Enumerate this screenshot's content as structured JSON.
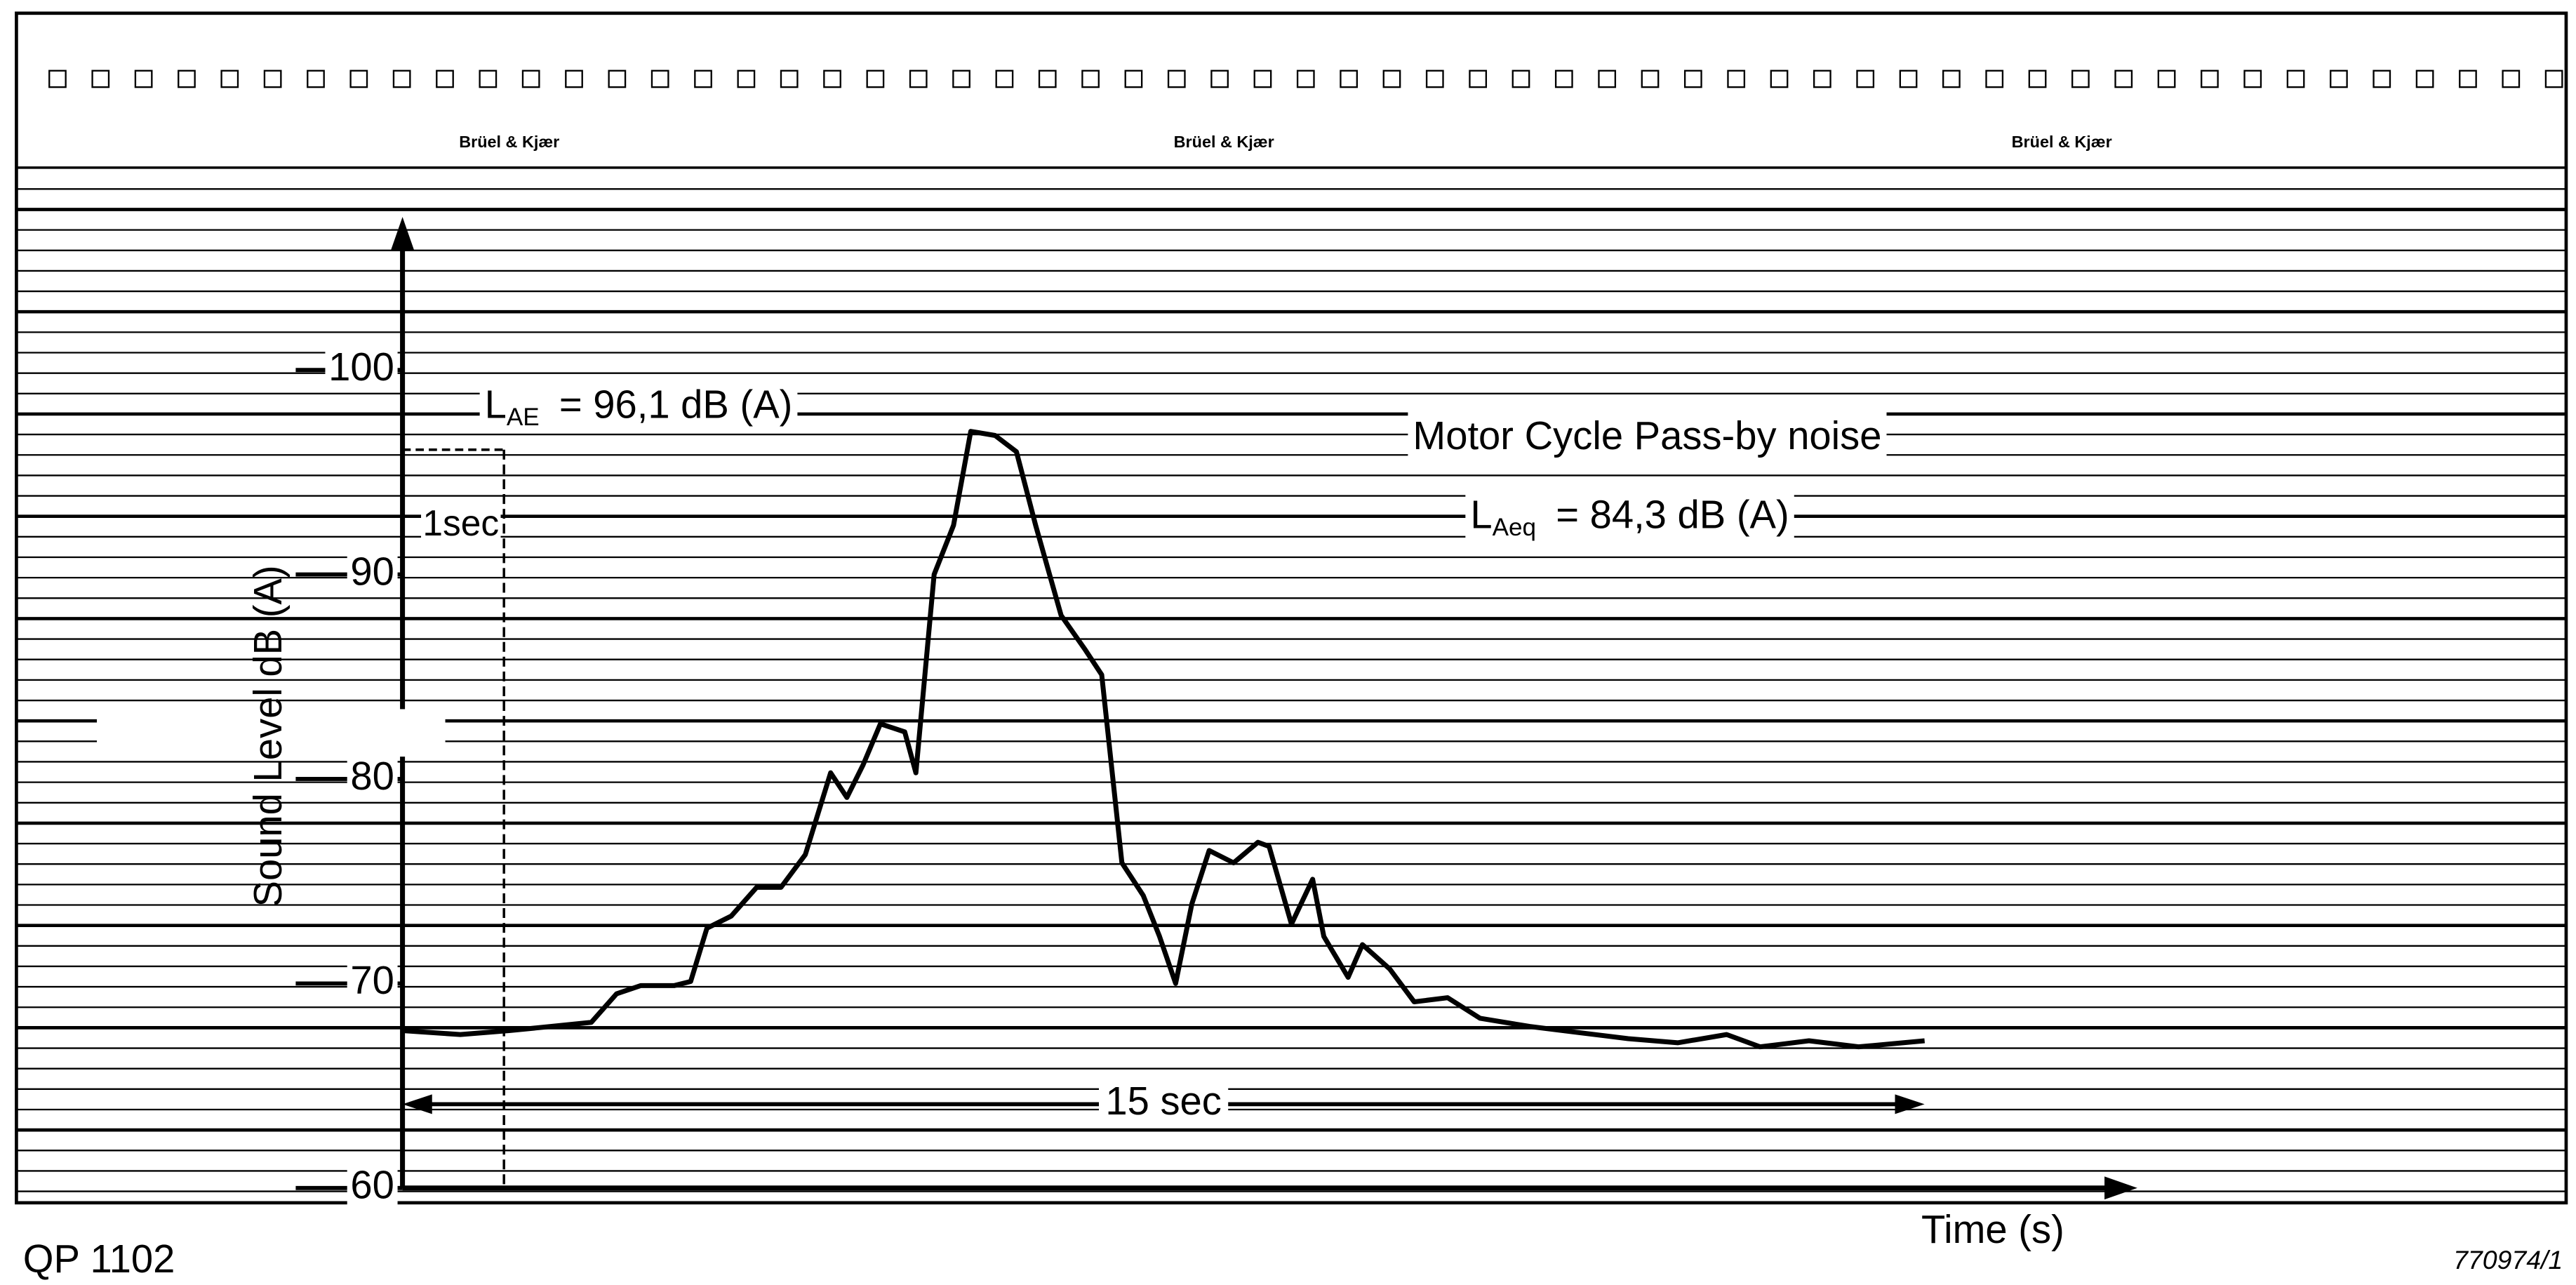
{
  "header": {
    "brands": [
      "Brüel & Kjær",
      "Brüel & Kjær",
      "Brüel & Kjær"
    ]
  },
  "footer": {
    "left": "QP 1102",
    "right": "770974/1"
  },
  "chart_data": {
    "type": "line",
    "title": "Motor Cycle Pass-by noise",
    "ylabel": "Sound Level dB (A)",
    "xlabel": "Time (s)",
    "x": [
      0,
      0.57,
      1.05,
      1.46,
      1.86,
      2.11,
      2.35,
      2.68,
      2.84,
      3.0,
      3.24,
      3.49,
      3.73,
      3.97,
      4.22,
      4.38,
      4.54,
      4.71,
      4.95,
      5.06,
      5.24,
      5.43,
      5.6,
      5.84,
      6.05,
      6.24,
      6.49,
      6.73,
      6.89,
      7.09,
      7.3,
      7.46,
      7.62,
      7.78,
      7.95,
      8.19,
      8.43,
      8.54,
      8.76,
      8.97,
      9.08,
      9.32,
      9.46,
      9.73,
      9.97,
      10.3,
      10.62,
      11.11,
      11.59,
      12.08,
      12.57,
      13.05,
      13.38,
      13.86,
      14.35,
      15.0
    ],
    "values": [
      67.7,
      67.5,
      67.7,
      67.9,
      68.1,
      69.5,
      69.9,
      69.9,
      70.1,
      72.7,
      73.3,
      74.7,
      74.7,
      76.3,
      80.3,
      79.1,
      80.7,
      82.7,
      82.3,
      80.3,
      90.0,
      92.4,
      97.0,
      96.8,
      96.0,
      92.4,
      88.0,
      86.3,
      85.1,
      75.9,
      74.3,
      72.3,
      70.0,
      73.9,
      76.5,
      75.9,
      76.9,
      76.7,
      72.9,
      75.1,
      72.3,
      70.3,
      71.9,
      70.7,
      69.1,
      69.3,
      68.3,
      67.9,
      67.6,
      67.3,
      67.1,
      67.5,
      66.9,
      67.2,
      66.9,
      67.2
    ],
    "color": "#000000",
    "xlim": [
      0,
      17
    ],
    "ylim": [
      60,
      107
    ],
    "yticks": [
      60,
      70,
      80,
      90,
      100
    ],
    "annotations": {
      "lae": {
        "symbol": "L",
        "subscript": "AE",
        "text": "= 96,1 dB (A)",
        "level": 96.1,
        "duration": 1
      },
      "laeq": {
        "symbol": "L",
        "subscript": "Aeq",
        "text": "= 84,3 dB (A)"
      },
      "one_sec": {
        "text": "1sec",
        "x": 1
      },
      "span": {
        "text": "15 sec",
        "start": 0,
        "end": 15
      }
    }
  }
}
